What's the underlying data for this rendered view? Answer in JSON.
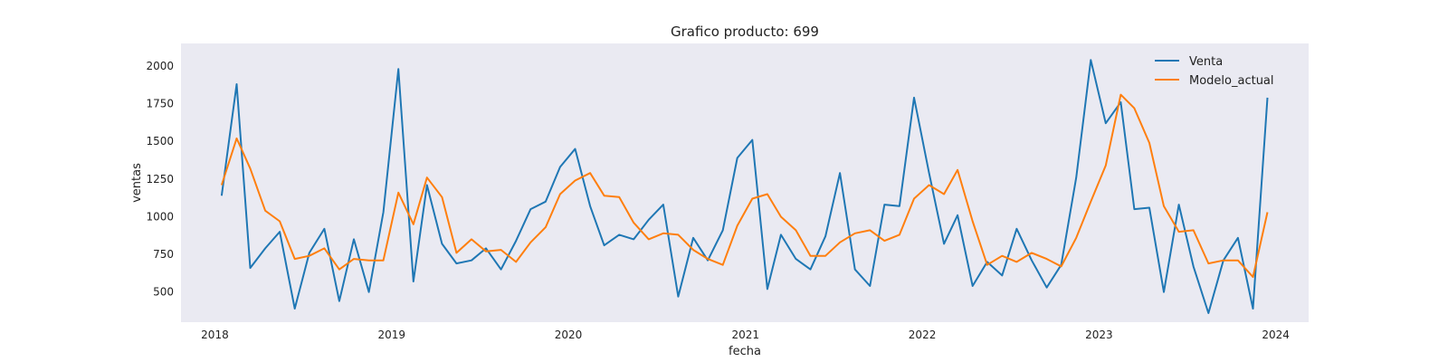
{
  "chart_data": {
    "type": "line",
    "title": "Grafico producto: 699",
    "xlabel": "fecha",
    "ylabel": "ventas",
    "x": [
      "2018-01",
      "2018-02",
      "2018-03",
      "2018-04",
      "2018-05",
      "2018-06",
      "2018-07",
      "2018-08",
      "2018-09",
      "2018-10",
      "2018-11",
      "2018-12",
      "2019-01",
      "2019-02",
      "2019-03",
      "2019-04",
      "2019-05",
      "2019-06",
      "2019-07",
      "2019-08",
      "2019-09",
      "2019-10",
      "2019-11",
      "2019-12",
      "2020-01",
      "2020-02",
      "2020-03",
      "2020-04",
      "2020-05",
      "2020-06",
      "2020-07",
      "2020-08",
      "2020-09",
      "2020-10",
      "2020-11",
      "2020-12",
      "2021-01",
      "2021-02",
      "2021-03",
      "2021-04",
      "2021-05",
      "2021-06",
      "2021-07",
      "2021-08",
      "2021-09",
      "2021-10",
      "2021-11",
      "2021-12",
      "2022-01",
      "2022-02",
      "2022-03",
      "2022-04",
      "2022-05",
      "2022-06",
      "2022-07",
      "2022-08",
      "2022-09",
      "2022-10",
      "2022-11",
      "2022-12",
      "2023-01",
      "2023-02",
      "2023-03",
      "2023-04",
      "2023-05",
      "2023-06",
      "2023-07",
      "2023-08",
      "2023-09",
      "2023-10",
      "2023-11",
      "2023-12"
    ],
    "series": [
      {
        "name": "Venta",
        "color": "#1f77b4",
        "values": [
          1140,
          1880,
          660,
          790,
          900,
          390,
          760,
          920,
          440,
          850,
          500,
          1030,
          1980,
          570,
          1210,
          820,
          690,
          710,
          790,
          650,
          840,
          1050,
          1100,
          1330,
          1450,
          1070,
          810,
          880,
          850,
          980,
          1080,
          470,
          860,
          710,
          910,
          1390,
          1510,
          520,
          880,
          720,
          650,
          870,
          1290,
          650,
          540,
          1080,
          1070,
          1790,
          1290,
          820,
          1010,
          540,
          700,
          610,
          920,
          710,
          530,
          680,
          1260,
          2040,
          1620,
          1760,
          1050,
          1060,
          500,
          1080,
          670,
          360,
          710,
          860,
          390,
          1790
        ]
      },
      {
        "name": "Modelo_actual",
        "color": "#ff7f0e",
        "values": [
          1210,
          1520,
          1320,
          1040,
          970,
          720,
          740,
          790,
          650,
          720,
          710,
          710,
          1160,
          950,
          1260,
          1130,
          760,
          850,
          770,
          780,
          700,
          830,
          930,
          1150,
          1240,
          1290,
          1140,
          1130,
          960,
          850,
          890,
          880,
          780,
          720,
          680,
          940,
          1120,
          1150,
          1000,
          910,
          740,
          740,
          830,
          890,
          910,
          840,
          880,
          1120,
          1210,
          1150,
          1310,
          970,
          680,
          740,
          700,
          760,
          720,
          670,
          860,
          1100,
          1340,
          1810,
          1720,
          1490,
          1070,
          900,
          910,
          690,
          710,
          710,
          600,
          1030
        ]
      }
    ],
    "xticks": [
      "2018",
      "2019",
      "2020",
      "2021",
      "2022",
      "2023",
      "2024"
    ],
    "yticks": [
      "500",
      "750",
      "1000",
      "1250",
      "1500",
      "1750",
      "2000"
    ],
    "ylim": [
      300,
      2150
    ],
    "xlim": [
      "2017-10-23",
      "2024-03-09"
    ],
    "grid": false,
    "legend_position": "top-right",
    "background_color": "#eaeaf2"
  }
}
